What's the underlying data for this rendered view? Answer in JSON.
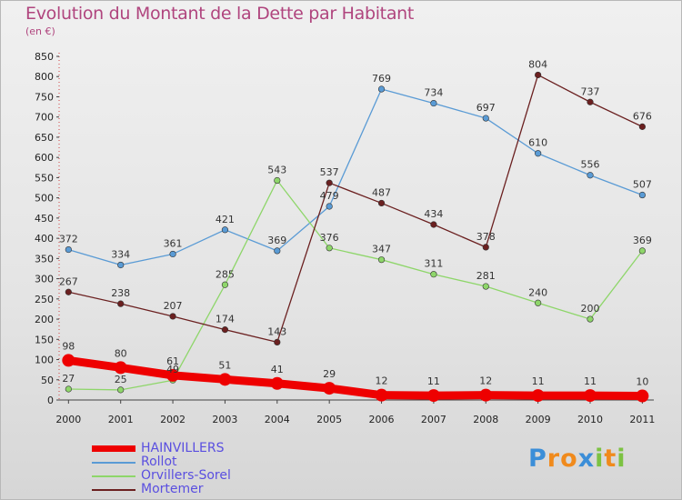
{
  "title": "Evolution du Montant de la Dette par Habitant",
  "subtitle": "(en €)",
  "logo": {
    "text": "Proxiti",
    "letters": [
      {
        "ch": "P",
        "color": "#3b8ed8"
      },
      {
        "ch": "r",
        "color": "#f08a1c"
      },
      {
        "ch": "o",
        "color": "#f08a1c"
      },
      {
        "ch": "x",
        "color": "#3b8ed8"
      },
      {
        "ch": "i",
        "color": "#7cc242"
      },
      {
        "ch": "t",
        "color": "#f08a1c"
      },
      {
        "ch": "i",
        "color": "#7cc242"
      }
    ]
  },
  "chart_data": {
    "type": "line",
    "x": [
      "2000",
      "2001",
      "2002",
      "2003",
      "2004",
      "2005",
      "2006",
      "2007",
      "2008",
      "2009",
      "2010",
      "2011"
    ],
    "ylim": [
      0,
      850
    ],
    "yticks": [
      0,
      50,
      100,
      150,
      200,
      250,
      300,
      350,
      400,
      450,
      500,
      550,
      600,
      650,
      700,
      750,
      800,
      850
    ],
    "grid": false,
    "legend_position": "bottom-left",
    "series": [
      {
        "name": "HAINVILLERS",
        "color": "#ee0000",
        "values": [
          98,
          80,
          61,
          51,
          41,
          29,
          12,
          11,
          12,
          11,
          11,
          10
        ]
      },
      {
        "name": "Rollot",
        "color": "#5a9bd5",
        "values": [
          372,
          334,
          361,
          421,
          369,
          479,
          769,
          734,
          697,
          610,
          556,
          507
        ]
      },
      {
        "name": "Orvillers-Sorel",
        "color": "#8ed66a",
        "values": [
          27,
          25,
          49,
          285,
          543,
          376,
          347,
          311,
          281,
          240,
          200,
          369
        ]
      },
      {
        "name": "Mortemer",
        "color": "#6b2020",
        "values": [
          267,
          238,
          207,
          174,
          143,
          537,
          487,
          434,
          378,
          804,
          737,
          676
        ]
      }
    ]
  }
}
